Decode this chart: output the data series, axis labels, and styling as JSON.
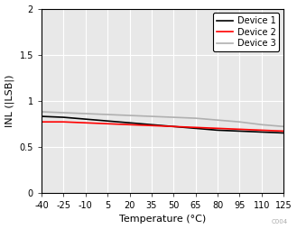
{
  "title": "",
  "xlabel": "Temperature (°C)",
  "ylabel": "INL (|LSB|)",
  "xlim": [
    -40,
    125
  ],
  "ylim": [
    0,
    2
  ],
  "xticks": [
    -40,
    -25,
    -10,
    5,
    20,
    35,
    50,
    65,
    80,
    95,
    110,
    125
  ],
  "yticks": [
    0,
    0.5,
    1.0,
    1.5,
    2.0
  ],
  "x": [
    -40,
    -25,
    -10,
    5,
    20,
    35,
    50,
    65,
    80,
    95,
    110,
    125
  ],
  "device1": [
    0.83,
    0.82,
    0.8,
    0.78,
    0.76,
    0.74,
    0.72,
    0.7,
    0.68,
    0.67,
    0.66,
    0.65
  ],
  "device2": [
    0.77,
    0.77,
    0.76,
    0.75,
    0.74,
    0.73,
    0.72,
    0.71,
    0.7,
    0.69,
    0.68,
    0.67
  ],
  "device3": [
    0.88,
    0.87,
    0.86,
    0.85,
    0.84,
    0.83,
    0.82,
    0.81,
    0.79,
    0.77,
    0.74,
    0.72
  ],
  "color_device1": "#000000",
  "color_device2": "#ff0000",
  "color_device3": "#b0b0b0",
  "legend_labels": [
    "Device 1",
    "Device 2",
    "Device 3"
  ],
  "linewidth": 1.2,
  "watermark": "C004",
  "plot_bg_color": "#e8e8e8",
  "fig_bg_color": "#ffffff",
  "grid_color": "#ffffff",
  "grid_linewidth": 0.8,
  "spine_color": "#000000",
  "tick_fontsize": 7,
  "label_fontsize": 8,
  "legend_fontsize": 7
}
